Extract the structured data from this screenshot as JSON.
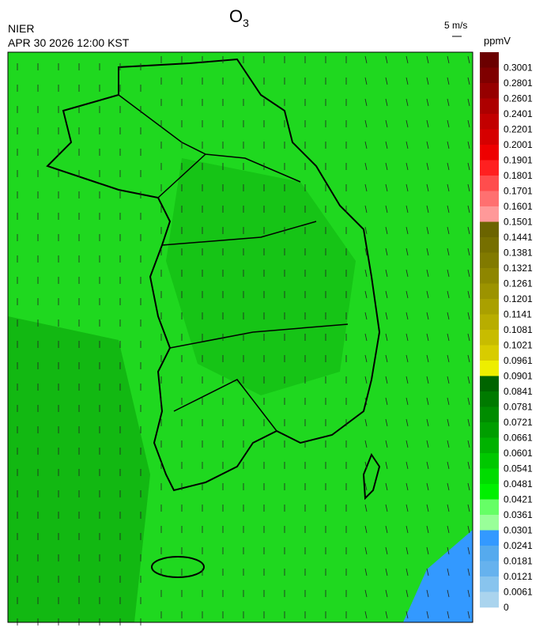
{
  "header": {
    "title": {
      "main": "O",
      "sub": "3"
    },
    "agency": "NIER",
    "datetime": "APR 30 2026 12:00 KST",
    "wind_scale": "5 m/s"
  },
  "colorbar": {
    "unit": "ppmV",
    "labels": [
      "0.3001",
      "0.2801",
      "0.2601",
      "0.2401",
      "0.2201",
      "0.2001",
      "0.1901",
      "0.1801",
      "0.1701",
      "0.1601",
      "0.1501",
      "0.1441",
      "0.1381",
      "0.1321",
      "0.1261",
      "0.1201",
      "0.1141",
      "0.1081",
      "0.1021",
      "0.0961",
      "0.0901",
      "0.0841",
      "0.0781",
      "0.0721",
      "0.0661",
      "0.0601",
      "0.0541",
      "0.0481",
      "0.0421",
      "0.0361",
      "0.0301",
      "0.0241",
      "0.0181",
      "0.0121",
      "0.0061",
      "0"
    ],
    "colors": [
      "#6b0000",
      "#7f0000",
      "#960000",
      "#ad0000",
      "#c20000",
      "#d60000",
      "#ee0000",
      "#ff2020",
      "#ff4d4d",
      "#ff7070",
      "#ff9999",
      "#6b6400",
      "#766f00",
      "#817a00",
      "#8e8600",
      "#9c9300",
      "#aaa000",
      "#b8ad00",
      "#c8bc00",
      "#d8cc00",
      "#eeee00",
      "#006400",
      "#007a00",
      "#008c00",
      "#009e00",
      "#00b200",
      "#00c800",
      "#00dc00",
      "#00f000",
      "#66ff66",
      "#99ff99",
      "#3399ff",
      "#55aaee",
      "#66b2ee",
      "#88c4ee",
      "#aad4ee"
    ]
  }
}
